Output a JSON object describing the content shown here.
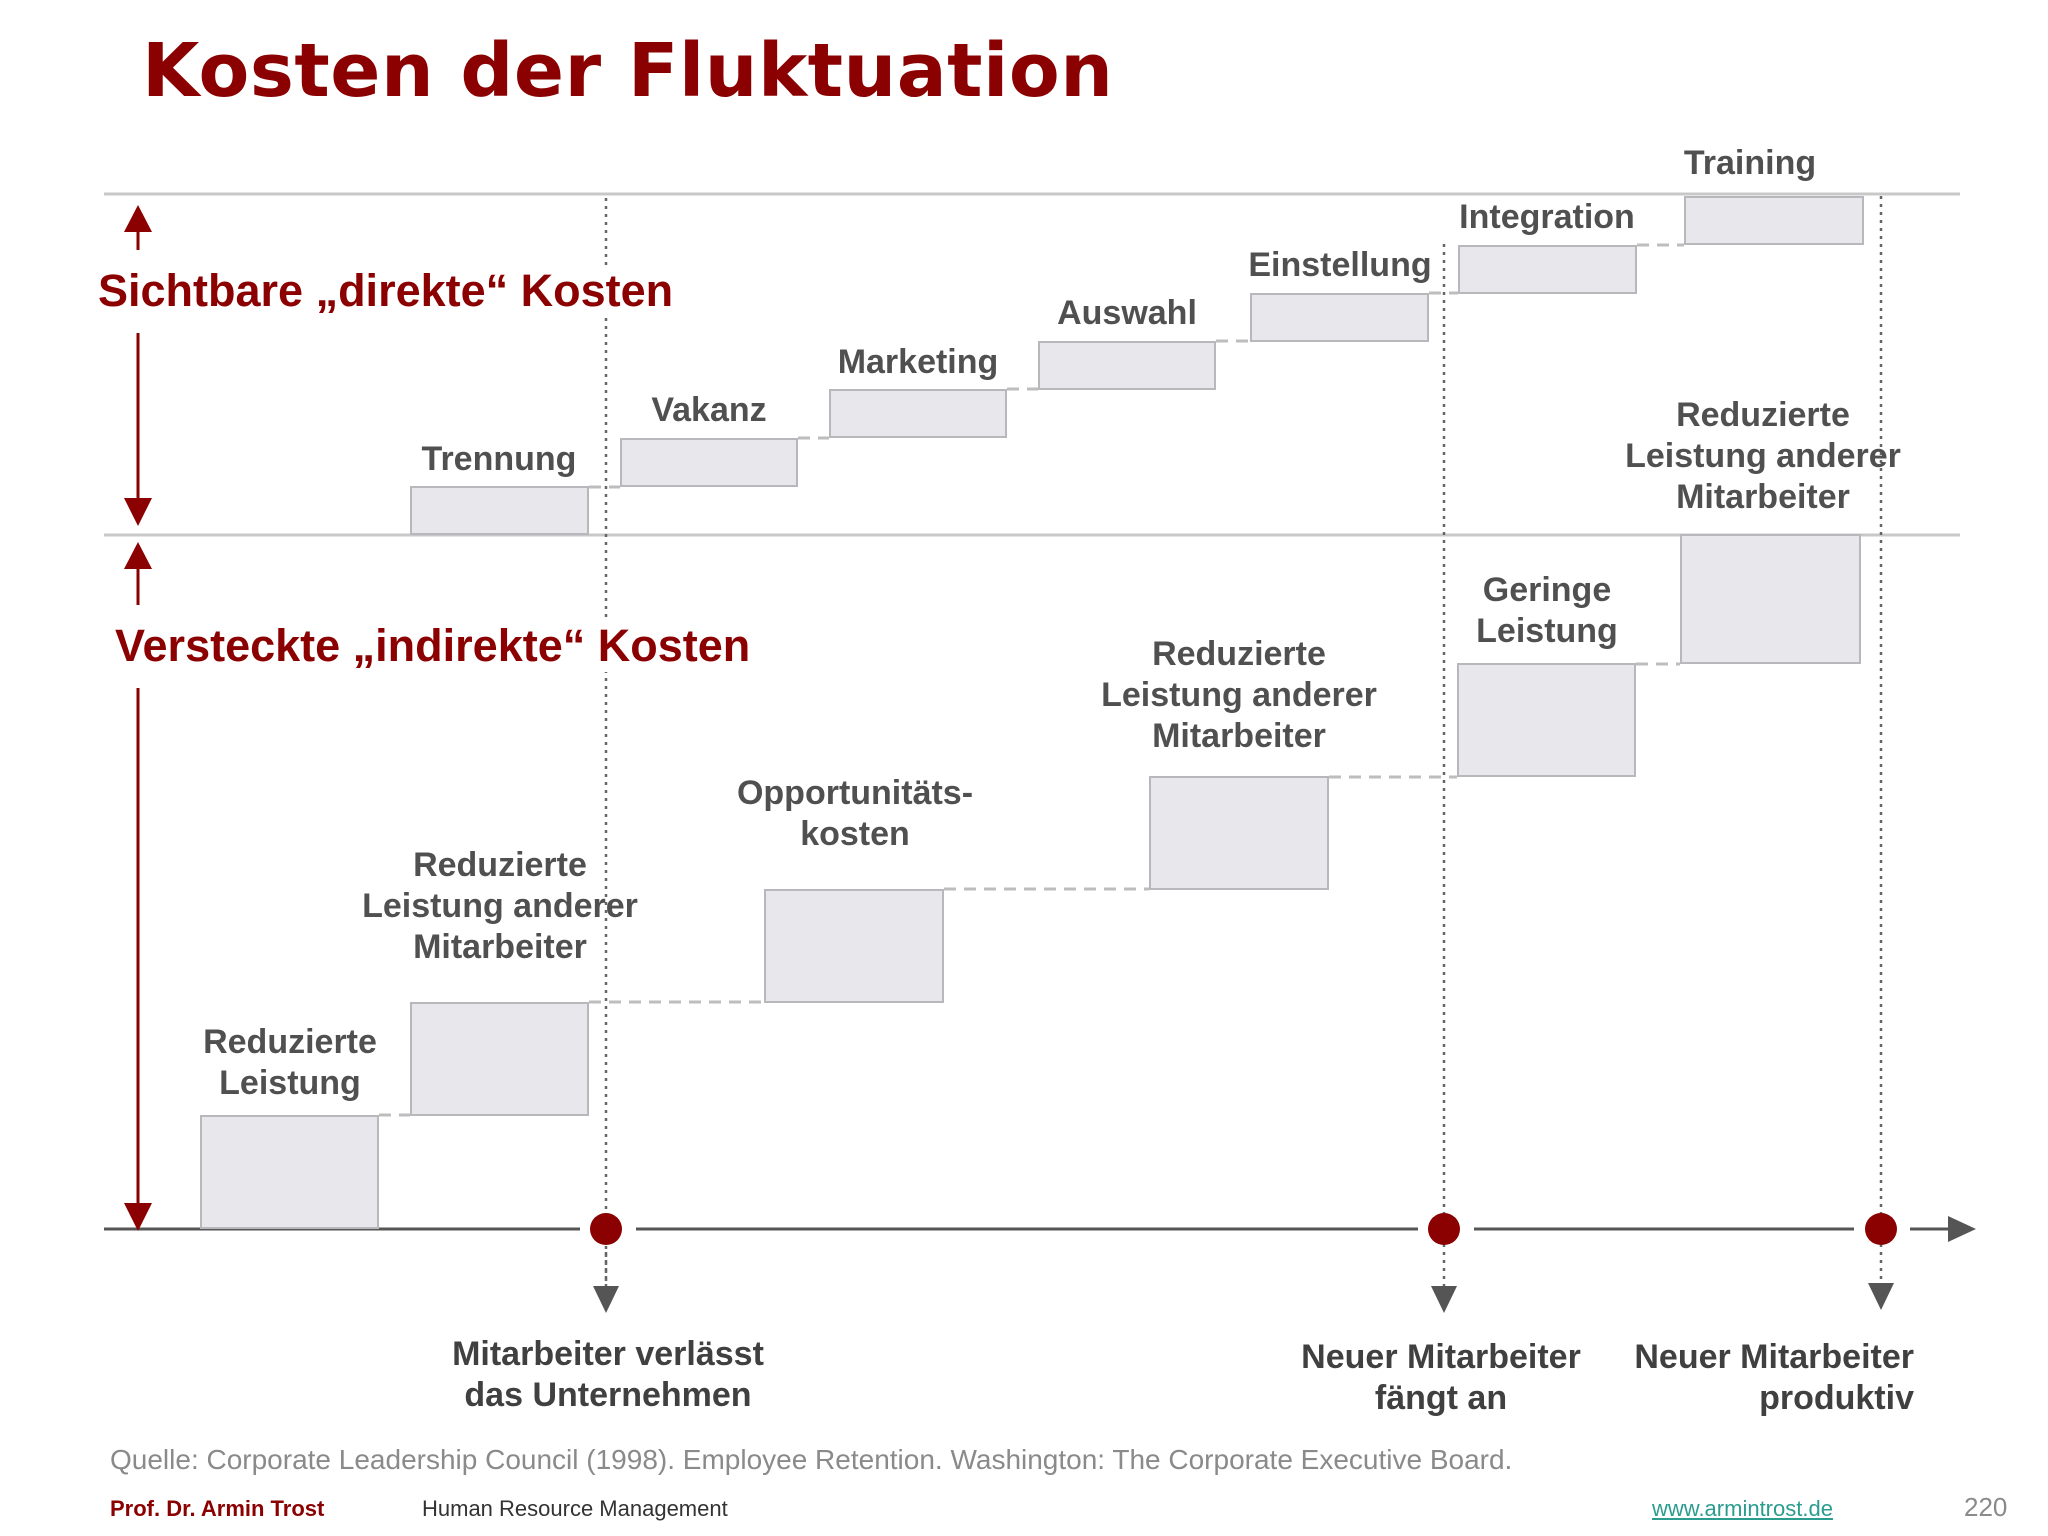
{
  "title": "Kosten der Fluktuation",
  "sections": {
    "visible": "Sichtbare „direkte“ Kosten",
    "hidden": "Versteckte „indirekte“ Kosten"
  },
  "direct_costs": [
    "Trennung",
    "Vakanz",
    "Marketing",
    "Auswahl",
    "Einstellung",
    "Integration",
    "Training"
  ],
  "indirect_costs": [
    [
      "Reduzierte",
      "Leistung"
    ],
    [
      "Reduzierte",
      "Leistung anderer",
      "Mitarbeiter"
    ],
    [
      "Opportunitäts-",
      "kosten"
    ],
    [
      "Reduzierte",
      "Leistung anderer",
      "Mitarbeiter"
    ],
    [
      "Geringe",
      "Leistung"
    ],
    [
      "Reduzierte",
      "Leistung anderer",
      "Mitarbeiter"
    ]
  ],
  "events": [
    [
      "Mitarbeiter verlässt",
      "das Unternehmen"
    ],
    [
      "Neuer Mitarbeiter",
      "fängt an"
    ],
    [
      "Neuer Mitarbeiter",
      "produktiv"
    ]
  ],
  "source": "Quelle: Corporate Leadership Council (1998). Employee Retention. Washington: The Corporate Executive Board.",
  "footer": {
    "author": "Prof. Dr. Armin Trost",
    "course": "Human Resource Management",
    "link": "www.armintrost.de",
    "page": "220"
  },
  "colors": {
    "accent": "#8b0000",
    "box_fill": "#e8e7eb",
    "box_border": "#b8b7bb",
    "line": "#555555"
  }
}
